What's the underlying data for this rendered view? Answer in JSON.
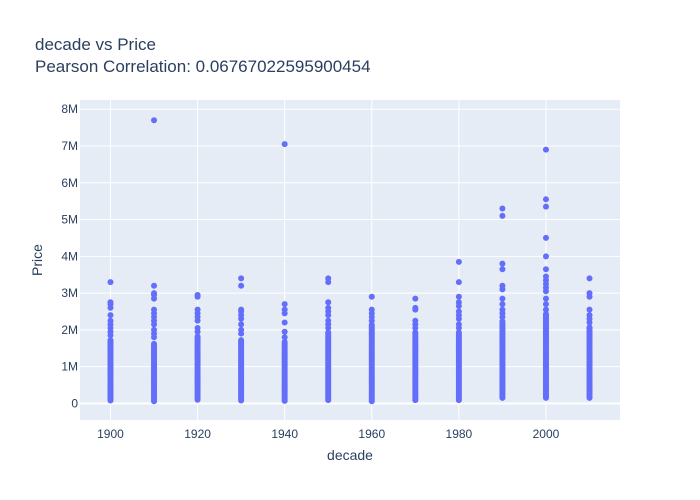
{
  "chart_data": {
    "type": "scatter",
    "title": "decade vs Price",
    "subtitle": "Pearson Correlation: 0.06767022595900454",
    "xlabel": "decade",
    "ylabel": "Price",
    "xlim": [
      1893,
      2017
    ],
    "ylim": [
      -450000,
      8250000
    ],
    "xticks": [
      1900,
      1920,
      1940,
      1960,
      1980,
      2000
    ],
    "xtick_labels": [
      "1900",
      "1920",
      "1940",
      "1960",
      "1980",
      "2000"
    ],
    "yticks": [
      0,
      1000000,
      2000000,
      3000000,
      4000000,
      5000000,
      6000000,
      7000000,
      8000000
    ],
    "ytick_labels": [
      "0",
      "1M",
      "2M",
      "3M",
      "4M",
      "5M",
      "6M",
      "7M",
      "8M"
    ],
    "grid": true,
    "colors": {
      "marker": "#636efa",
      "plot_bg": "#e5ecf6",
      "grid": "#ffffff",
      "text": "#2a3f5f"
    },
    "series": [
      {
        "points": [
          {
            "x": 1900,
            "low": 80000,
            "high": 1750000,
            "outliers": [
              1850000,
              1950000,
              2050000,
              2150000,
              2250000,
              2400000,
              2600000,
              2700000,
              2750000,
              3300000
            ]
          },
          {
            "x": 1910,
            "low": 60000,
            "high": 1650000,
            "outliers": [
              1800000,
              1900000,
              2000000,
              2150000,
              2250000,
              2350000,
              2450000,
              2550000,
              2850000,
              2950000,
              3000000,
              3200000,
              7700000
            ]
          },
          {
            "x": 1920,
            "low": 100000,
            "high": 1850000,
            "outliers": [
              1950000,
              2050000,
              2250000,
              2350000,
              2450000,
              2550000,
              2900000,
              2950000
            ]
          },
          {
            "x": 1930,
            "low": 80000,
            "high": 1750000,
            "outliers": [
              1900000,
              2000000,
              2150000,
              2300000,
              2400000,
              2500000,
              2550000,
              3200000,
              3400000
            ]
          },
          {
            "x": 1940,
            "low": 70000,
            "high": 1700000,
            "outliers": [
              1800000,
              1950000,
              2200000,
              2450000,
              2550000,
              2700000,
              7050000
            ]
          },
          {
            "x": 1950,
            "low": 90000,
            "high": 1950000,
            "outliers": [
              2050000,
              2150000,
              2250000,
              2400000,
              2500000,
              2600000,
              2750000,
              3300000,
              3400000
            ]
          },
          {
            "x": 1960,
            "low": 60000,
            "high": 2150000,
            "outliers": [
              2250000,
              2350000,
              2450000,
              2550000,
              2900000
            ]
          },
          {
            "x": 1970,
            "low": 90000,
            "high": 1950000,
            "outliers": [
              2050000,
              2150000,
              2250000,
              2550000,
              2600000,
              2850000
            ]
          },
          {
            "x": 1980,
            "low": 90000,
            "high": 1950000,
            "outliers": [
              2050000,
              2150000,
              2300000,
              2400000,
              2500000,
              2650000,
              2750000,
              2900000,
              3300000,
              3850000
            ]
          },
          {
            "x": 1990,
            "low": 150000,
            "high": 2250000,
            "outliers": [
              2350000,
              2450000,
              2550000,
              2700000,
              2850000,
              3100000,
              3200000,
              3650000,
              3800000,
              5100000,
              5300000
            ]
          },
          {
            "x": 2000,
            "low": 150000,
            "high": 2450000,
            "outliers": [
              2550000,
              2700000,
              2850000,
              3050000,
              3150000,
              3250000,
              3350000,
              3450000,
              3650000,
              4000000,
              4500000,
              5350000,
              5550000,
              6900000
            ]
          },
          {
            "x": 2010,
            "low": 150000,
            "high": 2100000,
            "outliers": [
              2200000,
              2300000,
              2400000,
              2550000,
              2900000,
              3000000,
              3400000
            ]
          }
        ]
      }
    ]
  }
}
